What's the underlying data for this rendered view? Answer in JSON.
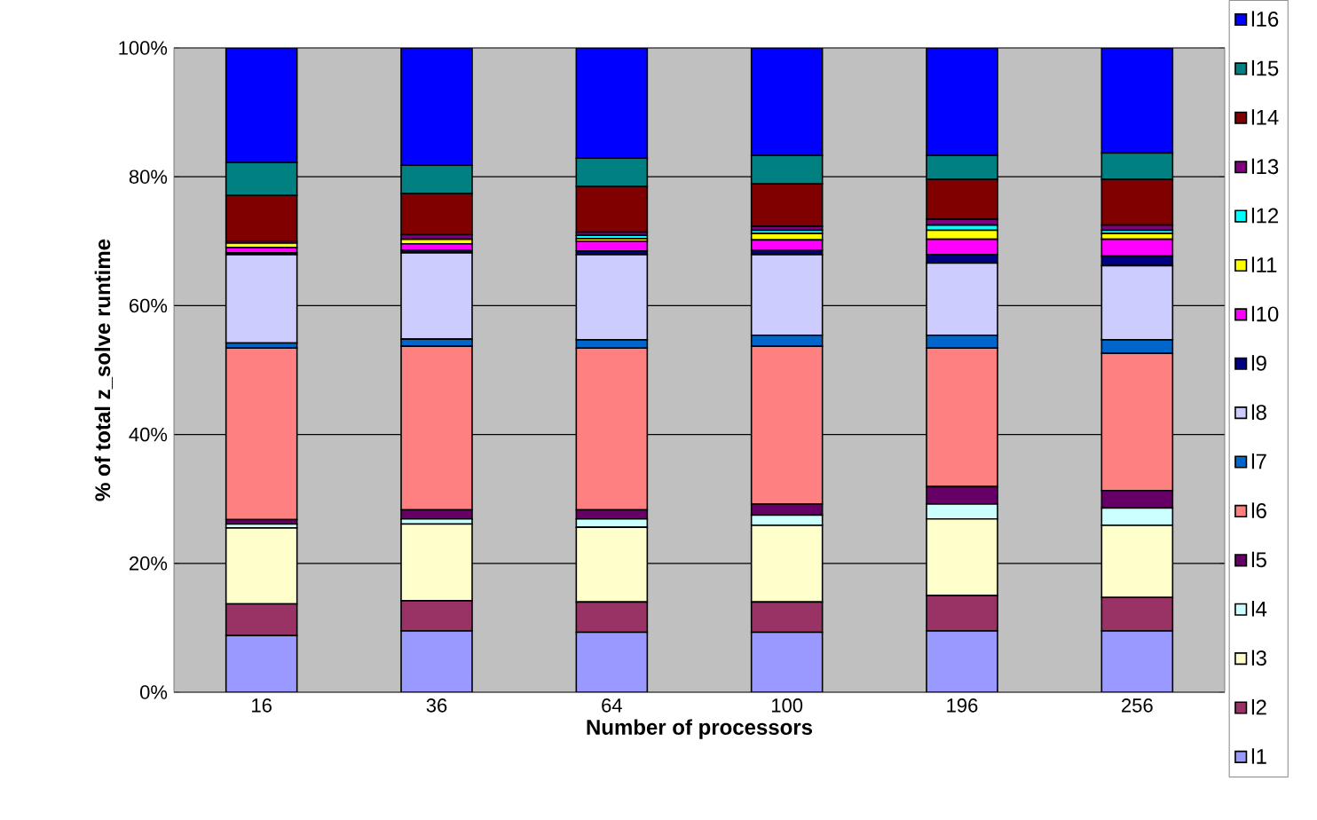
{
  "chart_data": {
    "type": "bar",
    "stacked": true,
    "xlabel": "Number of processors",
    "ylabel": "% of total z_solve runtime",
    "categories": [
      "16",
      "36",
      "64",
      "100",
      "196",
      "256"
    ],
    "ylim": [
      0,
      100
    ],
    "yticks": [
      {
        "value": 0,
        "label": "0%"
      },
      {
        "value": 20,
        "label": "20%"
      },
      {
        "value": 40,
        "label": "40%"
      },
      {
        "value": 60,
        "label": "60%"
      },
      {
        "value": 80,
        "label": "80%"
      },
      {
        "value": 100,
        "label": "100%"
      }
    ],
    "grid": "y",
    "legend": "right",
    "series": [
      {
        "name": "l1",
        "color": "#9999ff",
        "values": [
          8.8,
          9.5,
          9.3,
          9.3,
          9.5,
          9.5
        ]
      },
      {
        "name": "l2",
        "color": "#993366",
        "values": [
          4.9,
          4.7,
          4.7,
          4.7,
          5.5,
          5.2
        ]
      },
      {
        "name": "l3",
        "color": "#ffffcc",
        "values": [
          11.8,
          11.9,
          11.6,
          11.9,
          11.9,
          11.2
        ]
      },
      {
        "name": "l4",
        "color": "#ccffff",
        "values": [
          0.6,
          0.8,
          1.3,
          1.6,
          2.3,
          2.7
        ]
      },
      {
        "name": "l5",
        "color": "#660066",
        "values": [
          0.7,
          1.4,
          1.4,
          1.7,
          2.7,
          2.7
        ]
      },
      {
        "name": "l6",
        "color": "#ff8080",
        "values": [
          26.6,
          25.4,
          25.1,
          24.5,
          21.5,
          21.3
        ]
      },
      {
        "name": "l7",
        "color": "#0066cc",
        "values": [
          0.8,
          1.1,
          1.3,
          1.7,
          2.0,
          2.1
        ]
      },
      {
        "name": "l8",
        "color": "#ccccff",
        "values": [
          13.7,
          13.4,
          13.2,
          12.5,
          11.2,
          11.5
        ]
      },
      {
        "name": "l9",
        "color": "#000080",
        "values": [
          0.3,
          0.4,
          0.6,
          0.7,
          1.3,
          1.5
        ]
      },
      {
        "name": "l10",
        "color": "#ff00ff",
        "values": [
          0.8,
          1.0,
          1.5,
          1.6,
          2.4,
          2.6
        ]
      },
      {
        "name": "l11",
        "color": "#ffff00",
        "values": [
          0.7,
          0.7,
          0.4,
          1.0,
          1.4,
          0.9
        ]
      },
      {
        "name": "l12",
        "color": "#00ffff",
        "values": [
          null,
          null,
          0.5,
          0.5,
          0.8,
          0.5
        ]
      },
      {
        "name": "l13",
        "color": "#800080",
        "values": [
          0.3,
          0.7,
          0.5,
          0.6,
          0.9,
          0.8
        ]
      },
      {
        "name": "l14",
        "color": "#800000",
        "values": [
          7.1,
          6.4,
          7.1,
          6.6,
          6.2,
          7.1
        ]
      },
      {
        "name": "l15",
        "color": "#008080",
        "values": [
          5.1,
          4.4,
          4.4,
          4.4,
          3.7,
          4.1
        ]
      },
      {
        "name": "l16",
        "color": "#0000ff",
        "values": [
          17.8,
          18.2,
          17.1,
          16.7,
          16.7,
          16.3
        ]
      }
    ]
  }
}
